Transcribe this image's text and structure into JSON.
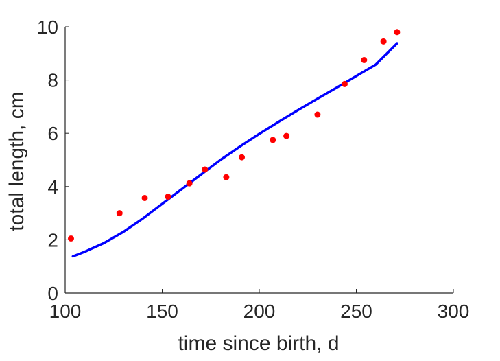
{
  "chart_data": {
    "type": "scatter",
    "xlabel": "time since birth, d",
    "ylabel": "total length, cm",
    "xlim": [
      100,
      300
    ],
    "ylim": [
      0,
      10
    ],
    "xticks": [
      100,
      150,
      200,
      250,
      300
    ],
    "yticks": [
      0,
      2,
      4,
      6,
      8,
      10
    ],
    "xtick_labels": [
      "100",
      "150",
      "200",
      "250",
      "300"
    ],
    "ytick_labels": [
      "0",
      "2",
      "4",
      "6",
      "8",
      "10"
    ],
    "grid": false,
    "series": [
      {
        "kind": "scatter",
        "color": "#ff0000",
        "x": [
          103,
          128,
          141,
          153,
          164,
          172,
          183,
          191,
          207,
          214,
          230,
          244,
          254,
          264,
          271
        ],
        "y": [
          2.05,
          3.0,
          3.57,
          3.62,
          4.12,
          4.64,
          4.35,
          5.1,
          5.75,
          5.9,
          6.7,
          7.85,
          8.75,
          9.45,
          9.8
        ]
      },
      {
        "kind": "line",
        "color": "#0000ff",
        "x": [
          104,
          110,
          120,
          130,
          140,
          150,
          160,
          170,
          180,
          190,
          200,
          210,
          220,
          230,
          240,
          250,
          260,
          271
        ],
        "y": [
          1.38,
          1.55,
          1.88,
          2.3,
          2.8,
          3.35,
          3.9,
          4.45,
          5.0,
          5.5,
          5.98,
          6.43,
          6.87,
          7.3,
          7.72,
          8.15,
          8.58,
          9.38
        ]
      }
    ]
  }
}
